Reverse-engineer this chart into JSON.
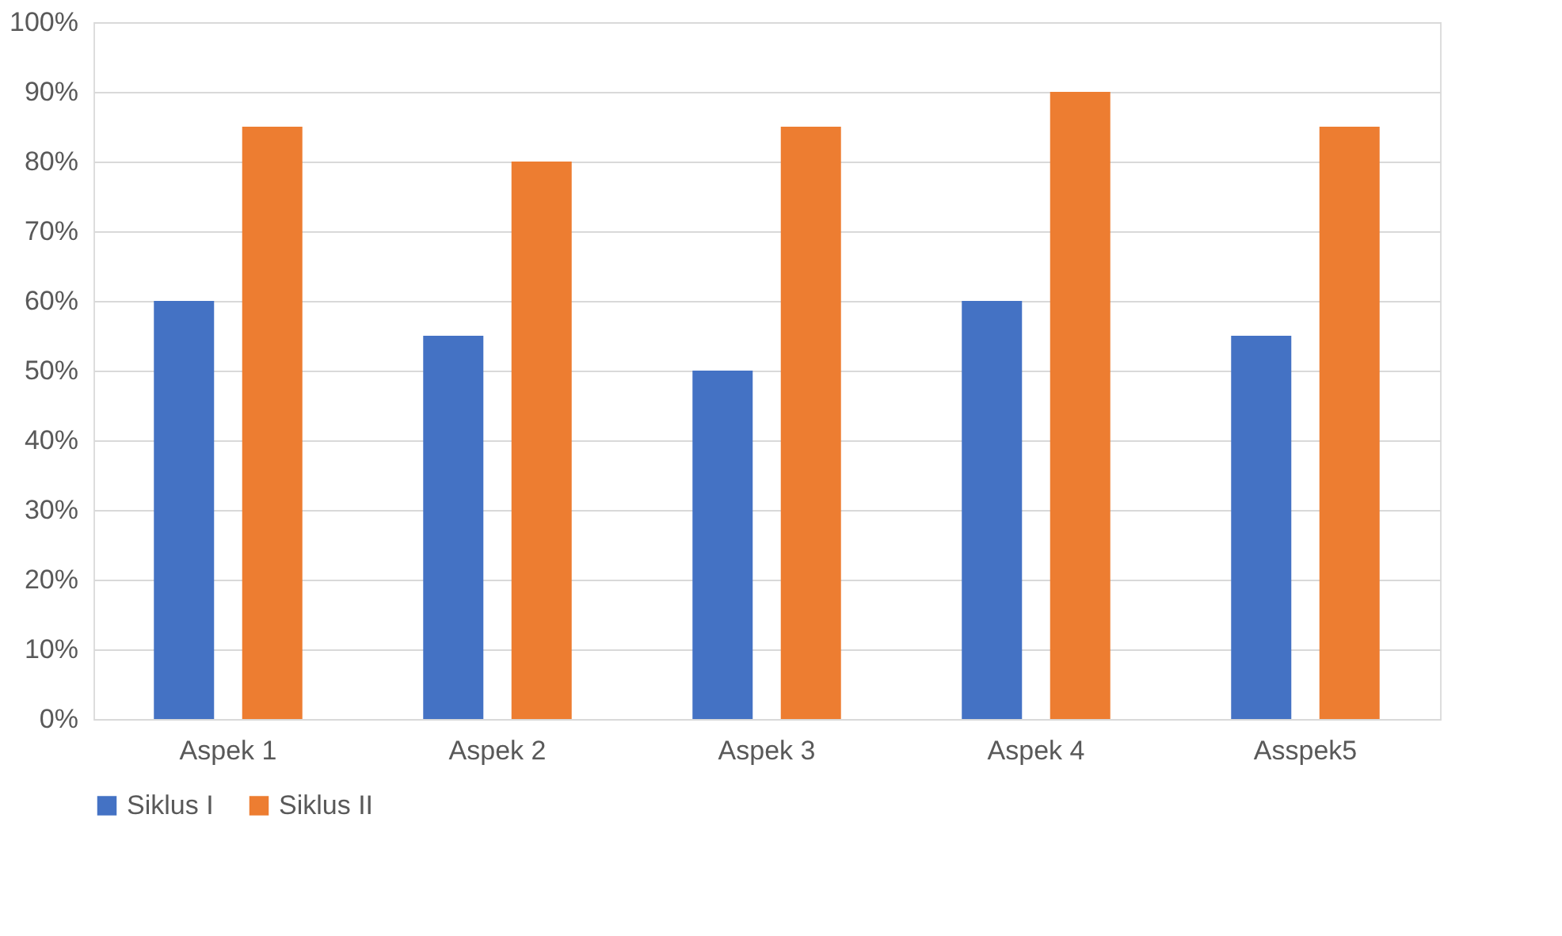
{
  "chart_data": {
    "type": "bar",
    "categories": [
      "Aspek 1",
      "Aspek 2",
      "Aspek 3",
      "Aspek 4",
      "Asspek5"
    ],
    "series": [
      {
        "name": "Siklus I",
        "color": "#4472c4",
        "values": [
          60,
          55,
          50,
          60,
          55
        ]
      },
      {
        "name": "Siklus II",
        "color": "#ed7d31",
        "values": [
          85,
          80,
          85,
          90,
          85
        ]
      }
    ],
    "ylim": [
      0,
      100
    ],
    "yticks": [
      {
        "value": 0,
        "label": "0%"
      },
      {
        "value": 10,
        "label": "10%"
      },
      {
        "value": 20,
        "label": "20%"
      },
      {
        "value": 30,
        "label": "30%"
      },
      {
        "value": 40,
        "label": "40%"
      },
      {
        "value": 50,
        "label": "50%"
      },
      {
        "value": 60,
        "label": "60%"
      },
      {
        "value": 70,
        "label": "70%"
      },
      {
        "value": 80,
        "label": "80%"
      },
      {
        "value": 90,
        "label": "90%"
      },
      {
        "value": 100,
        "label": "100%"
      }
    ],
    "grid": "y",
    "legend": "bottom"
  }
}
